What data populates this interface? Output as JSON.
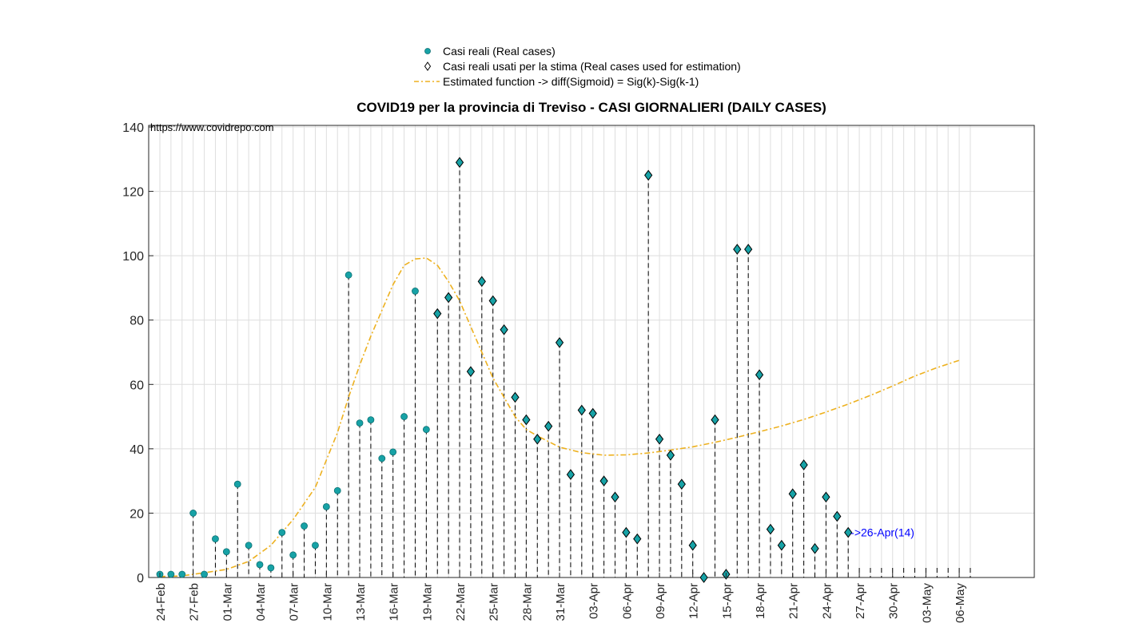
{
  "chart_data": {
    "type": "scatter",
    "title": "COVID19 per la provincia di Treviso - CASI GIORNALIERI (DAILY CASES)",
    "source_note": "https://www.covidrepo.com",
    "xlabel": "",
    "ylabel": "",
    "ylim": [
      0,
      140
    ],
    "yticks": [
      0,
      20,
      40,
      60,
      80,
      100,
      120,
      140
    ],
    "x_start_date": "24-Feb",
    "x_num_days": 73,
    "xtick_labels": [
      "24-Feb",
      "27-Feb",
      "01-Mar",
      "04-Mar",
      "07-Mar",
      "10-Mar",
      "13-Mar",
      "16-Mar",
      "19-Mar",
      "22-Mar",
      "25-Mar",
      "28-Mar",
      "31-Mar",
      "03-Apr",
      "06-Apr",
      "09-Apr",
      "12-Apr",
      "15-Apr",
      "18-Apr",
      "21-Apr",
      "24-Apr",
      "27-Apr",
      "30-Apr",
      "03-May",
      "06-May"
    ],
    "grid": true,
    "legend": {
      "position": "top-center",
      "entries": [
        "Casi reali (Real cases)",
        "Casi reali usati per la stima (Real cases used for estimation)",
        "Estimated function -> diff(Sigmoid) = Sig(k)-Sig(k-1)"
      ]
    },
    "series": [
      {
        "name": "Casi reali (Real cases)",
        "marker": "circle",
        "values": [
          1,
          1,
          1,
          20,
          1,
          12,
          8,
          29,
          10,
          4,
          3,
          14,
          7,
          16,
          10,
          22,
          27,
          94,
          48,
          49,
          37,
          39,
          50,
          89,
          46,
          82,
          87,
          129,
          64,
          92,
          86,
          77,
          56,
          49,
          43,
          47,
          73,
          32,
          52,
          51,
          30,
          25,
          14,
          12,
          125,
          43,
          38,
          29,
          10,
          0,
          49,
          1,
          102,
          102,
          63,
          15,
          10,
          26,
          35,
          9,
          25,
          19,
          14
        ]
      },
      {
        "name": "Casi reali usati per la stima (Real cases used for estimation)",
        "marker": "diamond",
        "day_indices": [
          25,
          26,
          27,
          28,
          29,
          30,
          31,
          32,
          33,
          34,
          35,
          36,
          37,
          38,
          39,
          40,
          41,
          42,
          43,
          44,
          45,
          46,
          47,
          48,
          49,
          50,
          51,
          52,
          53,
          54,
          55,
          56,
          57,
          58,
          59,
          60,
          61,
          62
        ]
      },
      {
        "name": "Estimated function -> diff(Sigmoid) = Sig(k)-Sig(k-1)",
        "style": "dash-dot",
        "color": "#EDB120",
        "x_days": [
          0,
          2,
          4,
          6,
          8,
          10,
          12,
          14,
          16,
          17,
          18,
          19,
          20,
          21,
          22,
          23,
          24,
          25,
          26,
          27,
          28,
          29,
          30,
          31,
          32,
          33,
          34,
          36,
          38,
          40,
          42,
          44,
          46,
          48,
          50,
          52,
          54,
          56,
          58,
          60,
          62,
          64,
          66,
          68,
          70,
          72
        ],
        "values": [
          0.3,
          0.5,
          1.5,
          2.5,
          5,
          10,
          18,
          28,
          45,
          56,
          66,
          75,
          83,
          91,
          97,
          99,
          99.3,
          97,
          92,
          86,
          78,
          70,
          62,
          56,
          50,
          46,
          44,
          40.5,
          38.8,
          38,
          38.1,
          38.7,
          39.6,
          40.6,
          42,
          43.6,
          45.3,
          47.1,
          49.1,
          51.4,
          53.9,
          56.6,
          59.5,
          62.6,
          65.2,
          67.5
        ]
      }
    ],
    "annotation": {
      "text": "->26-Apr(14)",
      "day_index": 62,
      "value": 14,
      "color": "#0000FF"
    },
    "colors": {
      "marker_fill": "#17A2A6",
      "curve": "#EDB120",
      "stem": "#000000",
      "annotation": "#0000FF"
    }
  }
}
